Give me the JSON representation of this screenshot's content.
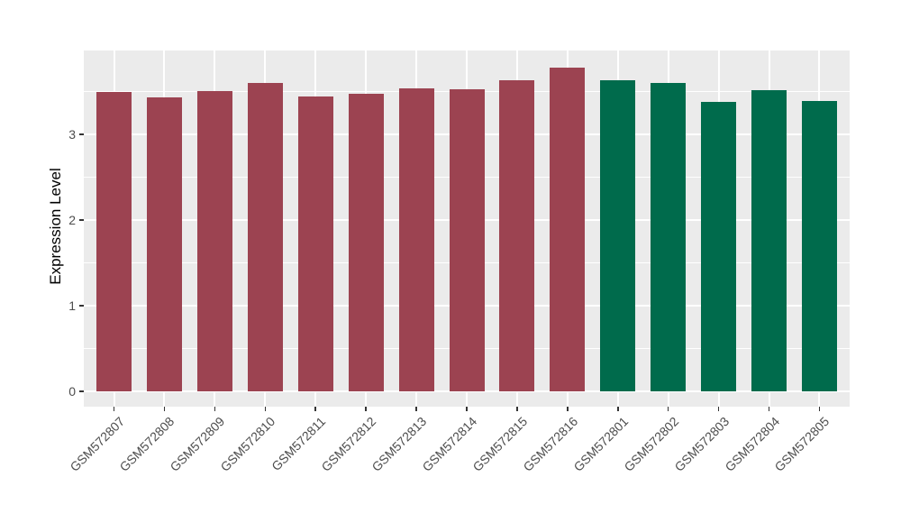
{
  "chart_data": {
    "type": "bar",
    "title": "",
    "xlabel": "",
    "ylabel": "Expression Level",
    "ylim": [
      -0.18,
      3.98
    ],
    "yticks": [
      0,
      1,
      2,
      3
    ],
    "y_minor_gridlines": [
      0.5,
      1.5,
      2.5,
      3.5
    ],
    "grid": "ggplot2 theme_gray: white major/minor horizontal gridlines, white vertical major gridline at each category center, gray panel",
    "legend_position": "none",
    "categories": [
      "GSM572807",
      "GSM572808",
      "GSM572809",
      "GSM572810",
      "GSM572811",
      "GSM572812",
      "GSM572813",
      "GSM572814",
      "GSM572815",
      "GSM572816",
      "GSM572801",
      "GSM572802",
      "GSM572803",
      "GSM572804",
      "GSM572805"
    ],
    "series": [
      {
        "name": "Expression Level",
        "values": [
          3.5,
          3.43,
          3.51,
          3.6,
          3.44,
          3.47,
          3.54,
          3.53,
          3.63,
          3.78,
          3.63,
          3.6,
          3.38,
          3.52,
          3.39
        ]
      }
    ],
    "bar_groups": [
      "red",
      "red",
      "red",
      "red",
      "red",
      "red",
      "red",
      "red",
      "red",
      "red",
      "green",
      "green",
      "green",
      "green",
      "green"
    ],
    "group_colors": {
      "red": "#9C4351",
      "green": "#006B4C"
    }
  },
  "style": {
    "figure_bg": "#FFFFFF",
    "panel_bg": "#EBEBEB",
    "grid_color": "#FFFFFF",
    "axis_text_color": "#4D4D4D",
    "axis_title_color": "#000000",
    "tick_mark_color": "#333333"
  }
}
